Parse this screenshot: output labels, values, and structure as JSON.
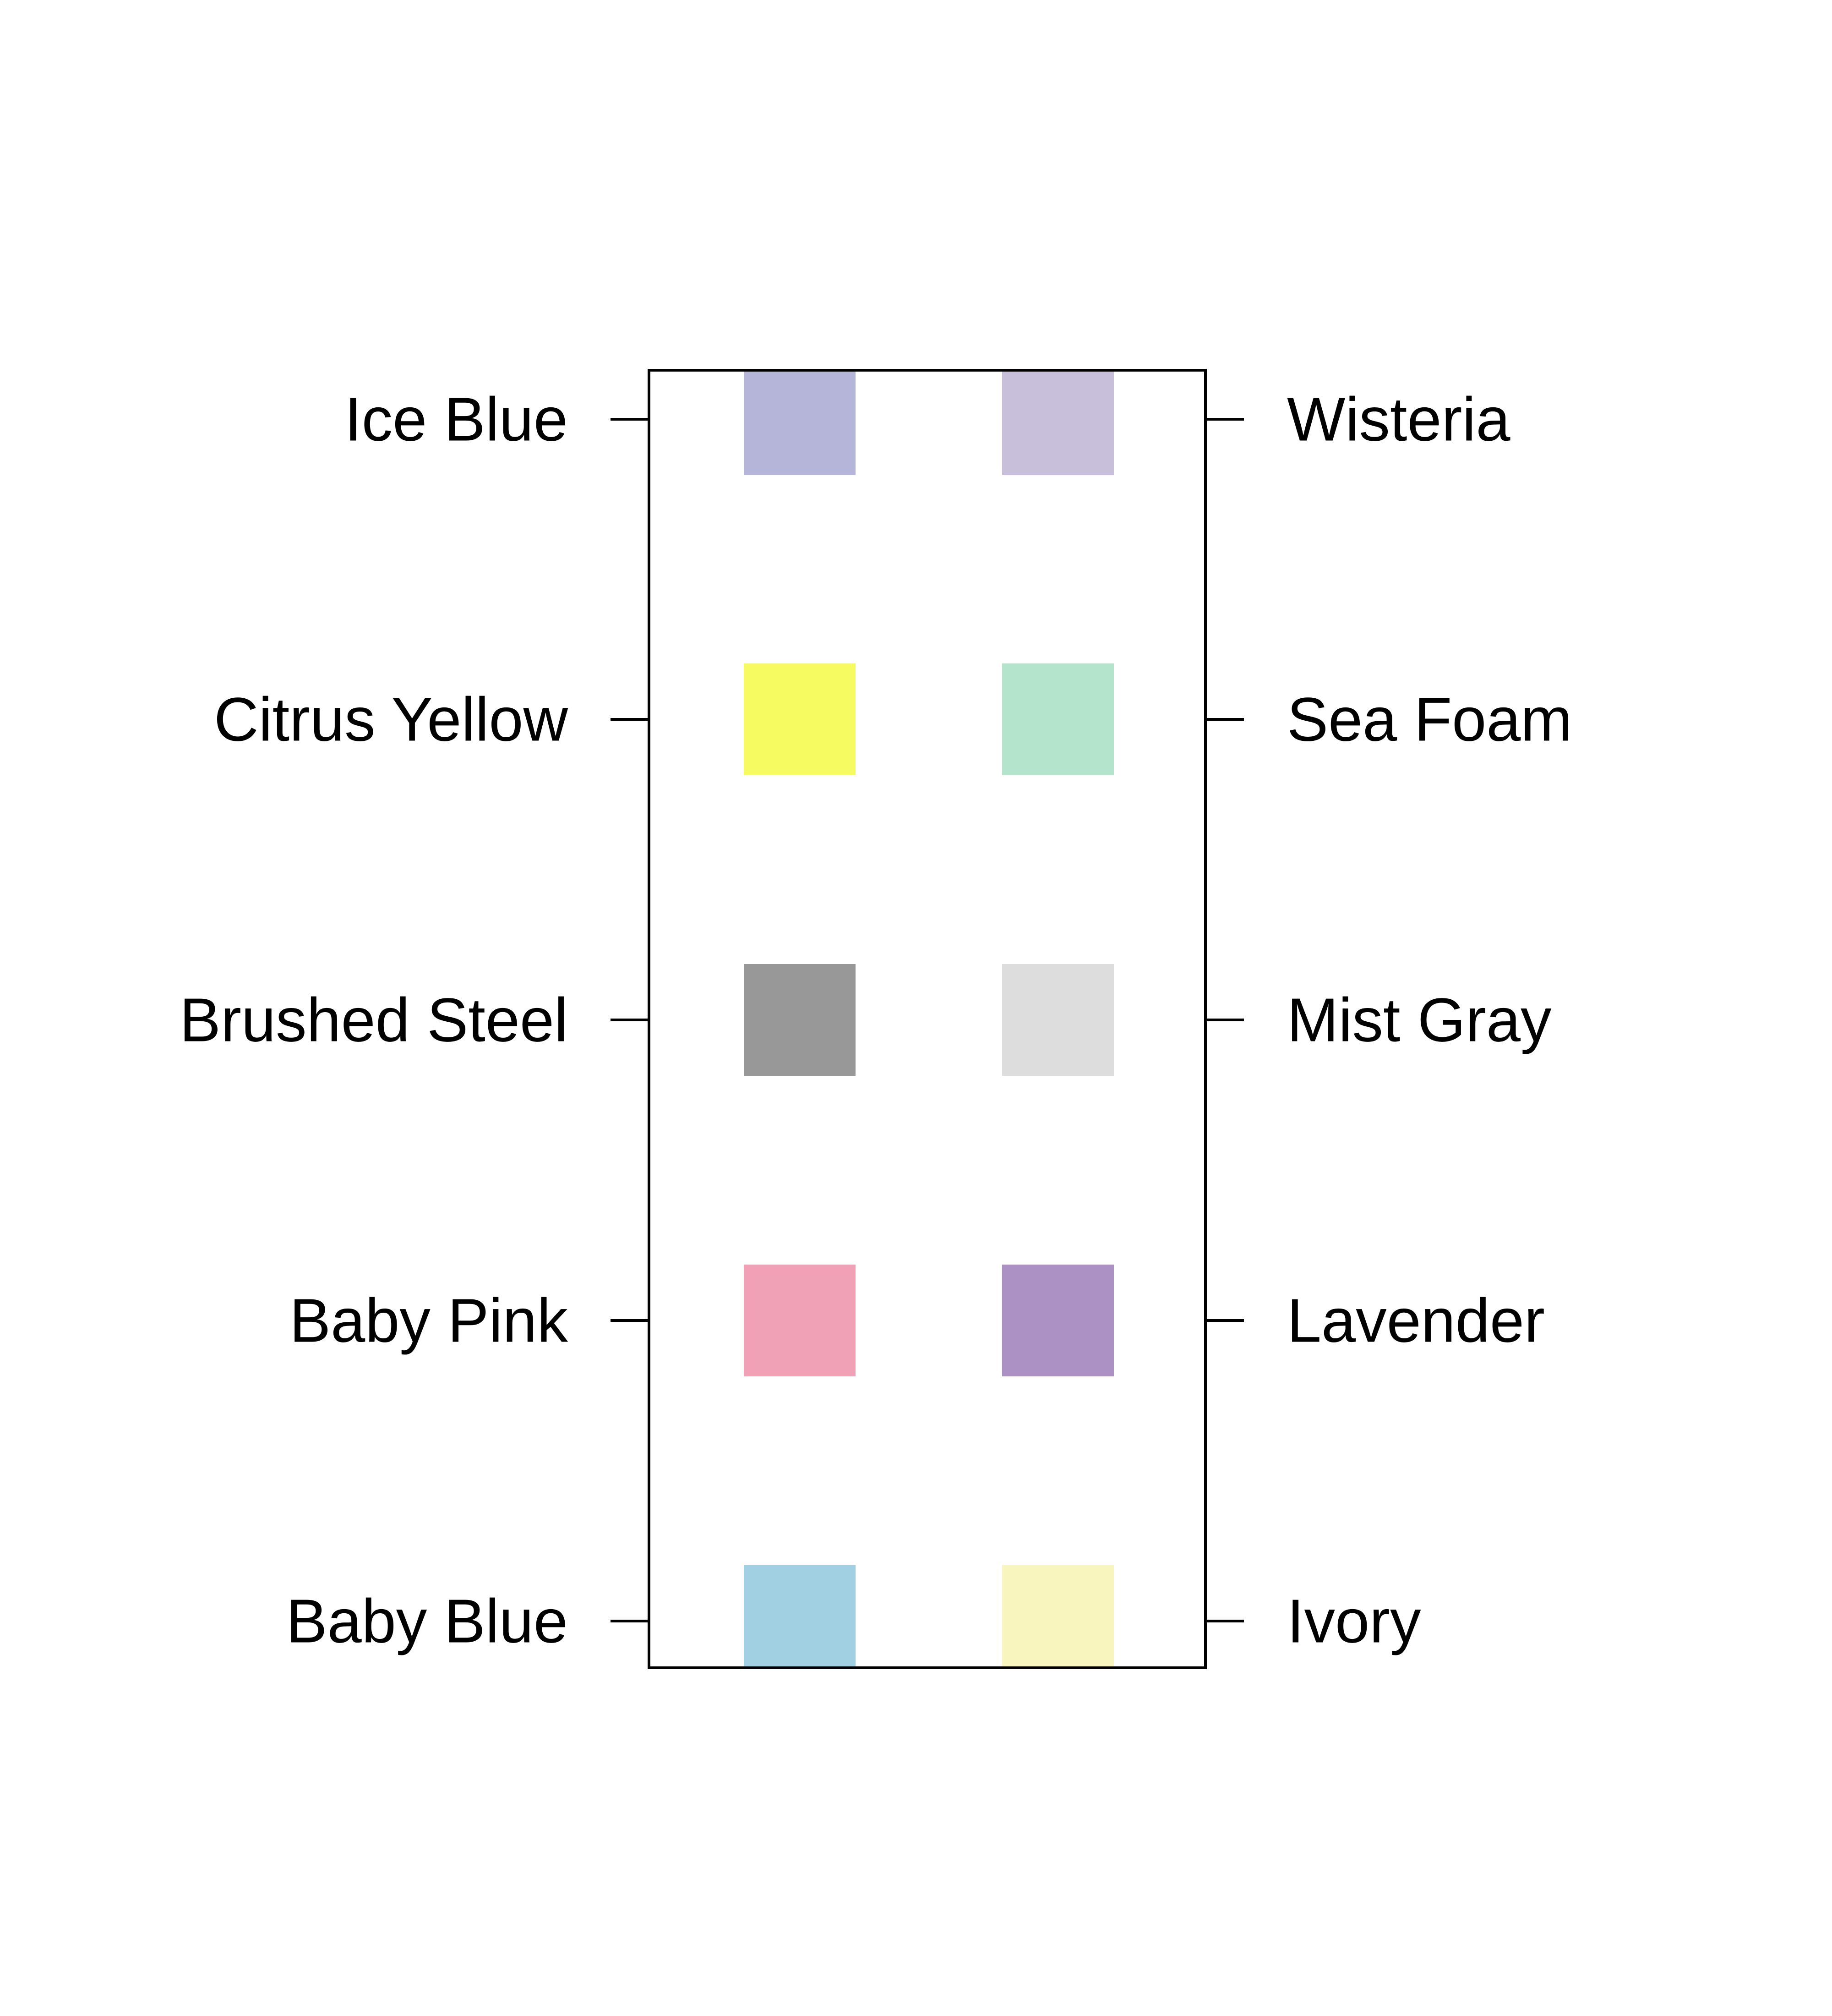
{
  "swatches": {
    "left_column": [
      {
        "name": "Ice Blue",
        "color": "#B5B5DA"
      },
      {
        "name": "Citrus Yellow",
        "color": "#F6FB62"
      },
      {
        "name": "Brushed Steel",
        "color": "#989898"
      },
      {
        "name": "Baby Pink",
        "color": "#F1A1B6"
      },
      {
        "name": "Baby Blue",
        "color": "#A1D0E2"
      }
    ],
    "right_column": [
      {
        "name": "Wisteria",
        "color": "#C8C0DA"
      },
      {
        "name": "Sea Foam",
        "color": "#B4E4CC"
      },
      {
        "name": "Mist Gray",
        "color": "#DDDDDD"
      },
      {
        "name": "Lavender",
        "color": "#AC91C5"
      },
      {
        "name": "Ivory",
        "color": "#F8F6BE"
      }
    ],
    "frame_color": "#000000",
    "background": "#FFFFFF"
  }
}
